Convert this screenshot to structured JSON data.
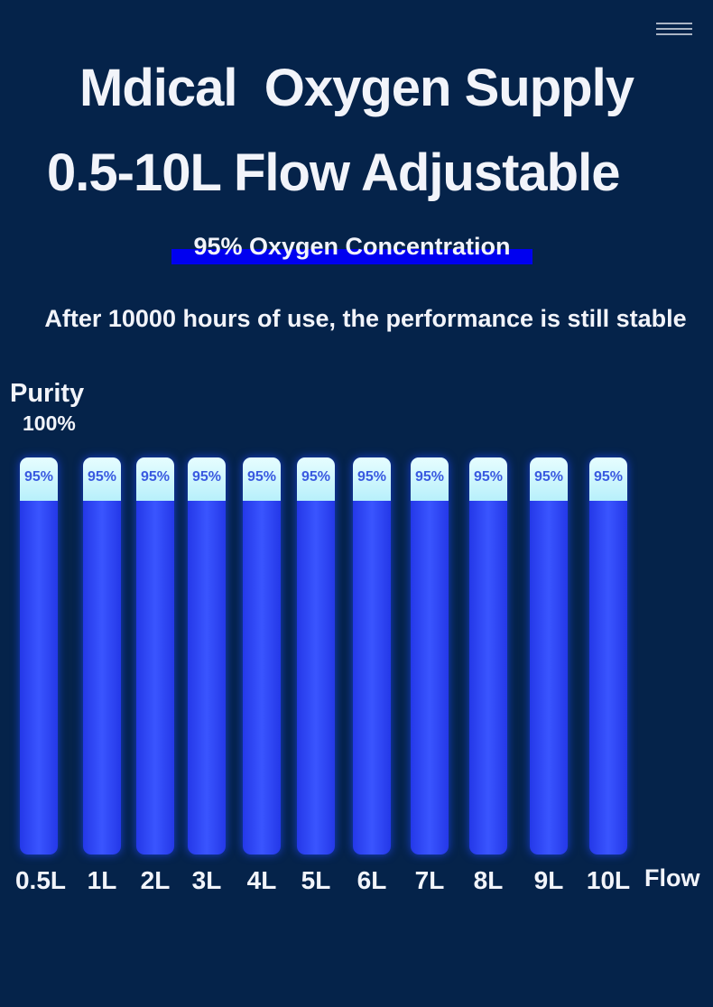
{
  "header": {
    "menu_icon": "hamburger-menu-icon",
    "title": "Mdical  Oxygen Supply",
    "subtitle": "0.5-10L Flow Adjustable",
    "highlight": "95% Oxygen Concentration",
    "tagline": "After 10000 hours of use, the performance is still stable"
  },
  "colors": {
    "background": "#05234a",
    "bar": "#3a55ff",
    "cap": "#d6f8fd",
    "highlight": "#0000f0"
  },
  "chart_data": {
    "type": "bar",
    "ylabel": "Purity",
    "y_top_label": "100%",
    "xlabel": "Flow",
    "ylim": [
      0,
      100
    ],
    "categories": [
      "0.5L",
      "1L",
      "2L",
      "3L",
      "4L",
      "5L",
      "6L",
      "7L",
      "8L",
      "9L",
      "10L"
    ],
    "values": [
      95,
      95,
      95,
      95,
      95,
      95,
      95,
      95,
      95,
      95,
      95
    ],
    "data_labels": [
      "95%",
      "95%",
      "95%",
      "95%",
      "95%",
      "95%",
      "95%",
      "95%",
      "95%",
      "95%",
      "95%"
    ]
  }
}
